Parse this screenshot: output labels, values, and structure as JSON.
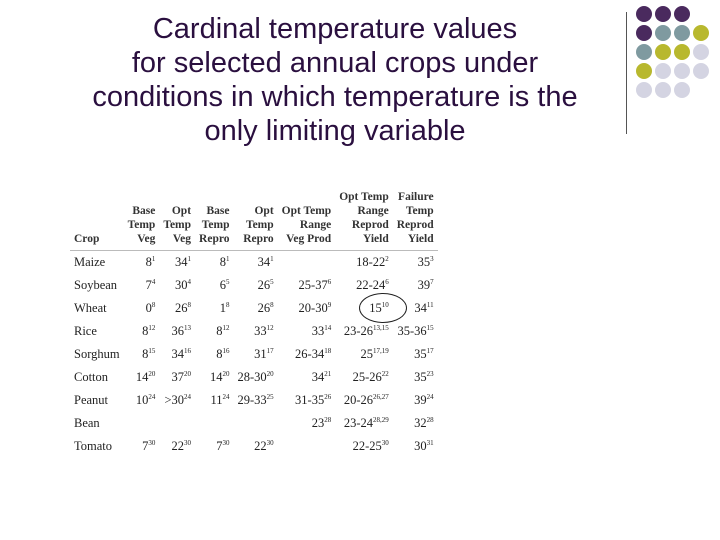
{
  "title": {
    "lines": [
      "Cardinal temperature values",
      "for selected annual crops under",
      "conditions in which temperature is the",
      "only limiting variable"
    ]
  },
  "decoration": {
    "colors": {
      "purple": "#4a2a5e",
      "teal": "#7f9aa0",
      "olive": "#b8b82e",
      "lavender": "#d4d4e2"
    }
  },
  "table": {
    "headers": [
      [
        "Crop"
      ],
      [
        "Base",
        "Temp",
        "Veg"
      ],
      [
        "Opt",
        "Temp",
        "Veg"
      ],
      [
        "Base",
        "Temp",
        "Repro"
      ],
      [
        "Opt",
        "Temp",
        "Repro"
      ],
      [
        "Opt Temp",
        "Range",
        "Veg Prod"
      ],
      [
        "Opt Temp",
        "Range",
        "Reprod",
        "Yield"
      ],
      [
        "Failure",
        "Temp",
        "Reprod",
        "Yield"
      ]
    ],
    "rows": [
      {
        "crop": "Maize",
        "cells": [
          [
            "8",
            "1"
          ],
          [
            "34",
            "1"
          ],
          [
            "8",
            "1"
          ],
          [
            "34",
            "1"
          ],
          [
            "",
            ""
          ],
          [
            "18-22",
            "2"
          ],
          [
            "35",
            "3"
          ]
        ]
      },
      {
        "crop": "Soybean",
        "cells": [
          [
            "7",
            "4"
          ],
          [
            "30",
            "4"
          ],
          [
            "6",
            "5"
          ],
          [
            "26",
            "5"
          ],
          [
            "25-37",
            "6"
          ],
          [
            "22-24",
            "6"
          ],
          [
            "39",
            "7"
          ]
        ]
      },
      {
        "crop": "Wheat",
        "cells": [
          [
            "0",
            "8"
          ],
          [
            "26",
            "8"
          ],
          [
            "1",
            "8"
          ],
          [
            "26",
            "8"
          ],
          [
            "20-30",
            "9"
          ],
          [
            "15",
            "10"
          ],
          [
            "34",
            "11"
          ]
        ]
      },
      {
        "crop": "Rice",
        "cells": [
          [
            "8",
            "12"
          ],
          [
            "36",
            "13"
          ],
          [
            "8",
            "12"
          ],
          [
            "33",
            "12"
          ],
          [
            "33",
            "14"
          ],
          [
            "23-26",
            "13,15"
          ],
          [
            "35-36",
            "15"
          ]
        ]
      },
      {
        "crop": "Sorghum",
        "cells": [
          [
            "8",
            "15"
          ],
          [
            "34",
            "16"
          ],
          [
            "8",
            "16"
          ],
          [
            "31",
            "17"
          ],
          [
            "26-34",
            "18"
          ],
          [
            "25",
            "17,19"
          ],
          [
            "35",
            "17"
          ]
        ]
      },
      {
        "crop": "Cotton",
        "cells": [
          [
            "14",
            "20"
          ],
          [
            "37",
            "20"
          ],
          [
            "14",
            "20"
          ],
          [
            "28-30",
            "20"
          ],
          [
            "34",
            "21"
          ],
          [
            "25-26",
            "22"
          ],
          [
            "35",
            "23"
          ]
        ]
      },
      {
        "crop": "Peanut",
        "cells": [
          [
            "10",
            "24"
          ],
          [
            ">30",
            "24"
          ],
          [
            "11",
            "24"
          ],
          [
            "29-33",
            "25"
          ],
          [
            "31-35",
            "26"
          ],
          [
            "20-26",
            "26,27"
          ],
          [
            "39",
            "24"
          ]
        ]
      },
      {
        "crop": "Bean",
        "cells": [
          [
            "",
            ""
          ],
          [
            "",
            ""
          ],
          [
            "",
            ""
          ],
          [
            "",
            ""
          ],
          [
            "23",
            "28"
          ],
          [
            "23-24",
            "28,29"
          ],
          [
            "32",
            "28"
          ]
        ]
      },
      {
        "crop": "Tomato",
        "cells": [
          [
            "7",
            "30"
          ],
          [
            "22",
            "30"
          ],
          [
            "7",
            "30"
          ],
          [
            "22",
            "30"
          ],
          [
            "",
            ""
          ],
          [
            "22-25",
            "30"
          ],
          [
            "30",
            "31"
          ]
        ]
      }
    ],
    "circled": {
      "row": 2,
      "col": 5
    }
  }
}
